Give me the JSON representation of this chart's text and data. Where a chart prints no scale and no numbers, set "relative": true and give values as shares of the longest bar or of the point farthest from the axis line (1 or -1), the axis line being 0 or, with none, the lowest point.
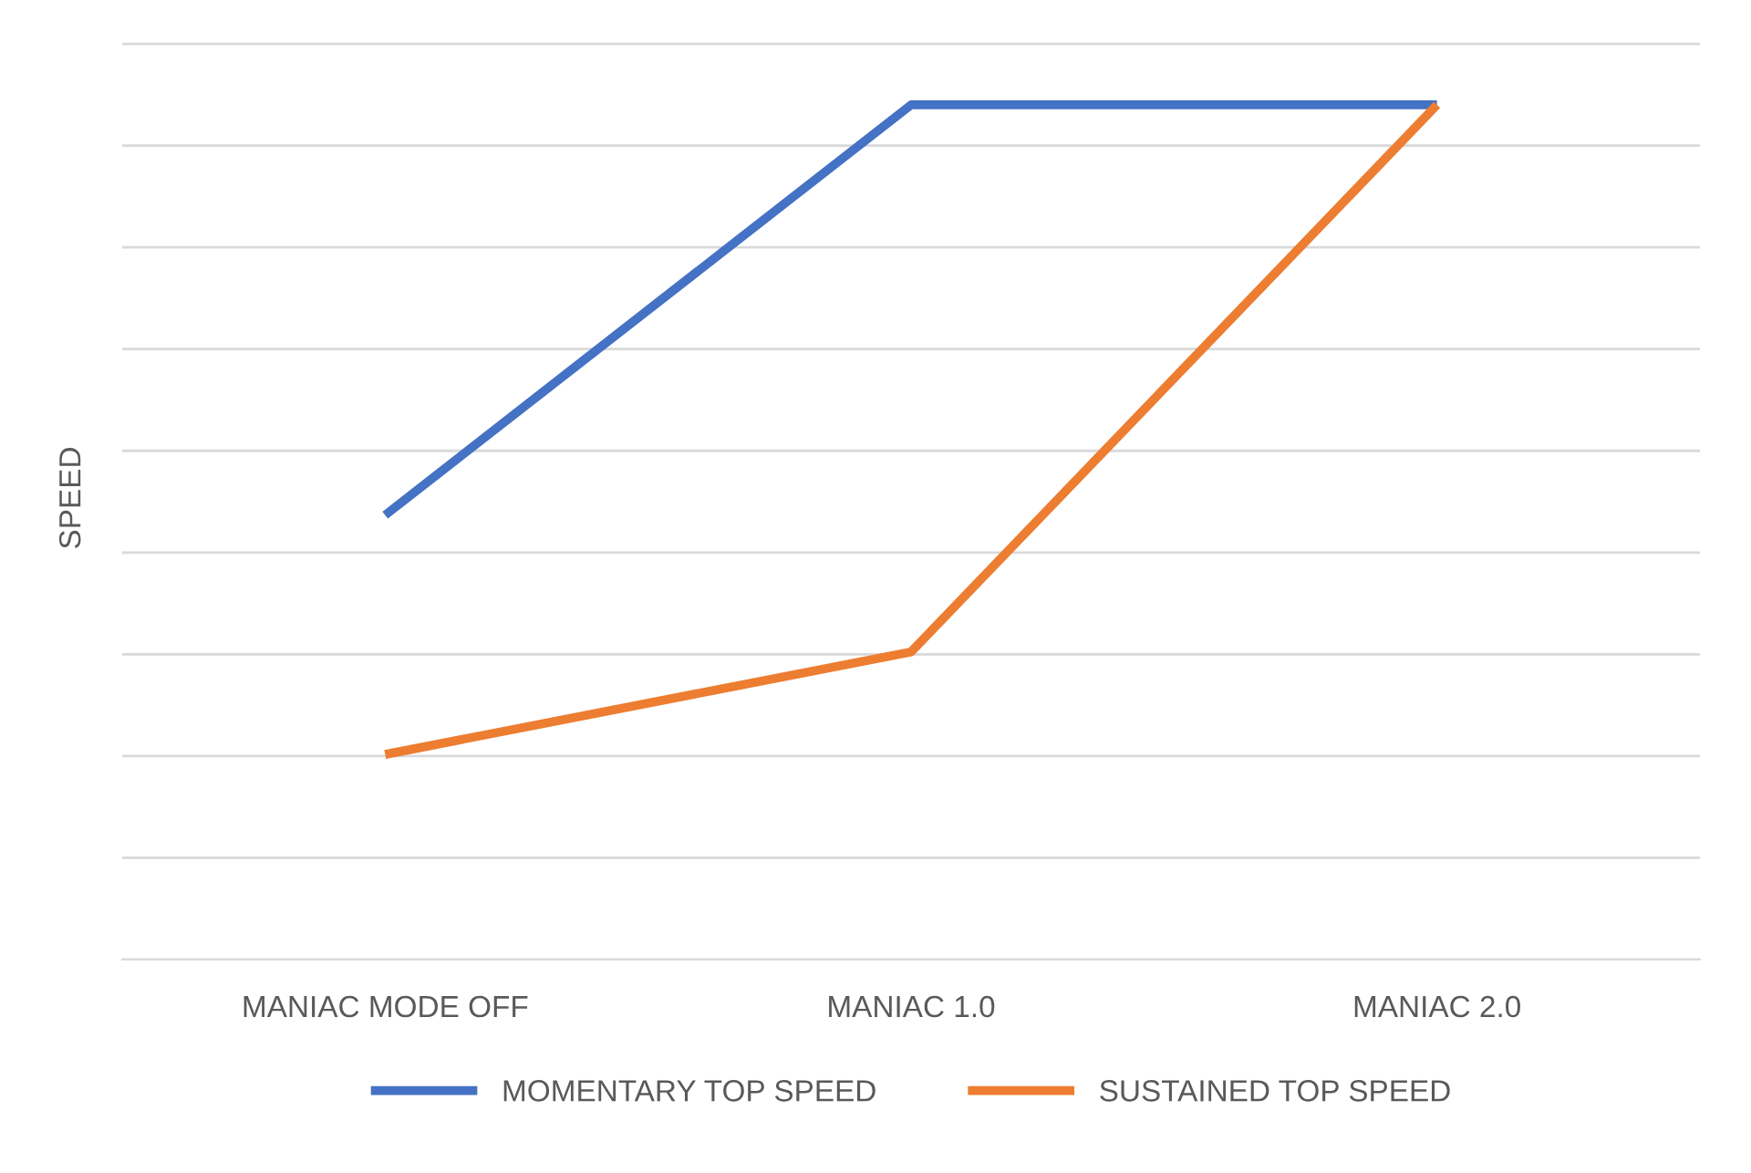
{
  "chart_data": {
    "type": "line",
    "relative": true,
    "ylabel": "SPEED",
    "categories": [
      "MANIAC MODE OFF",
      "MANIAC 1.0",
      "MANIAC 2.0"
    ],
    "series": [
      {
        "name": "MOMENTARY TOP SPEED",
        "color": "#4472c4",
        "values": [
          0.52,
          1,
          1
        ]
      },
      {
        "name": "SUSTAINED TOP SPEED",
        "color": "#ed7d31",
        "values": [
          0.24,
          0.36,
          1
        ]
      }
    ],
    "grid": "y",
    "legend": "bottom",
    "marker": "none",
    "line_style": "solid"
  }
}
